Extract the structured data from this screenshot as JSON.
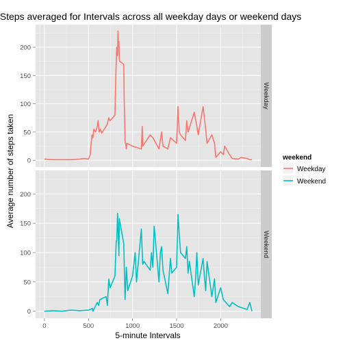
{
  "chart_data": {
    "type": "line",
    "title": "Steps averaged for Intervals across all weekday days or weekend days",
    "xlabel": "5-minute Intervals",
    "ylabel": "Average number of steps taken",
    "xlim": [
      -100,
      2455
    ],
    "ylim": [
      -12,
      240
    ],
    "x_ticks": [
      "0",
      "500",
      "1000",
      "1500",
      "2000"
    ],
    "y_ticks": [
      "0",
      "50",
      "100",
      "150",
      "200"
    ],
    "grid": true,
    "legend": {
      "title": "weekend",
      "position": "right"
    },
    "panels": [
      {
        "strip": "Weekday",
        "series_name": "Weekday",
        "color": "#F8766D",
        "x": [
          0,
          100,
          200,
          300,
          400,
          450,
          500,
          520,
          540,
          550,
          560,
          580,
          600,
          610,
          620,
          635,
          650,
          700,
          715,
          730,
          745,
          800,
          810,
          820,
          830,
          835,
          840,
          845,
          850,
          855,
          900,
          905,
          910,
          915,
          930,
          935,
          1000,
          1100,
          1110,
          1115,
          1200,
          1230,
          1300,
          1330,
          1345,
          1400,
          1430,
          1500,
          1515,
          1530,
          1545,
          1600,
          1615,
          1630,
          1700,
          1730,
          1745,
          1800,
          1830,
          1845,
          1900,
          1930,
          1945,
          2000,
          2030,
          2045,
          2100,
          2130,
          2200,
          2230,
          2300,
          2330,
          2355
        ],
        "y": [
          2,
          1,
          1,
          1,
          2,
          3,
          2,
          10,
          45,
          40,
          55,
          50,
          60,
          70,
          50,
          55,
          48,
          60,
          65,
          75,
          70,
          80,
          150,
          200,
          185,
          229,
          205,
          210,
          180,
          175,
          170,
          110,
          75,
          35,
          20,
          30,
          25,
          20,
          60,
          25,
          45,
          40,
          20,
          50,
          25,
          20,
          40,
          30,
          95,
          50,
          45,
          35,
          70,
          50,
          85,
          60,
          45,
          95,
          55,
          30,
          45,
          30,
          5,
          15,
          10,
          25,
          10,
          3,
          2,
          5,
          3,
          1,
          1
        ]
      },
      {
        "strip": "Weekend",
        "series_name": "Weekend",
        "color": "#00BFC4",
        "x": [
          0,
          100,
          200,
          300,
          400,
          500,
          520,
          545,
          550,
          600,
          615,
          630,
          700,
          715,
          730,
          745,
          800,
          815,
          820,
          830,
          845,
          850,
          900,
          915,
          930,
          945,
          1000,
          1030,
          1045,
          1100,
          1115,
          1130,
          1200,
          1215,
          1230,
          1245,
          1300,
          1315,
          1330,
          1345,
          1400,
          1415,
          1430,
          1445,
          1500,
          1515,
          1530,
          1545,
          1600,
          1615,
          1630,
          1645,
          1700,
          1715,
          1730,
          1745,
          1800,
          1815,
          1830,
          1845,
          1900,
          1930,
          1945,
          2000,
          2015,
          2030,
          2100,
          2130,
          2200,
          2300,
          2330,
          2355
        ],
        "y": [
          0,
          1,
          0,
          2,
          1,
          2,
          3,
          5,
          0,
          15,
          10,
          20,
          25,
          10,
          55,
          40,
          60,
          120,
          120,
          167,
          95,
          158,
          115,
          20,
          75,
          35,
          60,
          100,
          50,
          140,
          80,
          85,
          70,
          100,
          75,
          145,
          50,
          100,
          110,
          70,
          30,
          60,
          90,
          65,
          75,
          165,
          130,
          100,
          90,
          110,
          65,
          85,
          25,
          55,
          100,
          45,
          90,
          60,
          35,
          85,
          25,
          55,
          15,
          40,
          30,
          20,
          8,
          15,
          8,
          3,
          15,
          0
        ]
      }
    ]
  }
}
